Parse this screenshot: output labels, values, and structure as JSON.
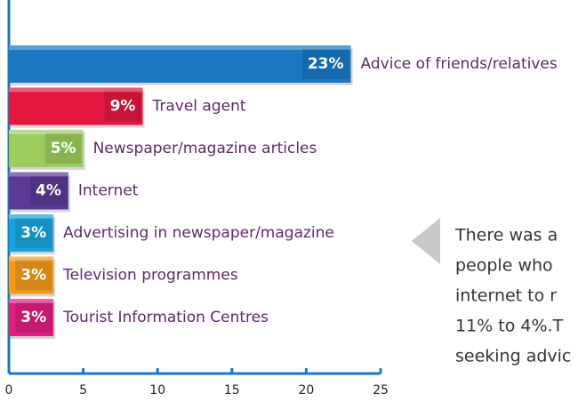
{
  "chart_data": {
    "type": "bar",
    "orientation": "horizontal",
    "categories": [
      "Advice of friends/relatives",
      "Travel agent",
      "Newspaper/magazine articles",
      "Internet",
      "Advertising in newspaper/magazine",
      "Television programmes",
      "Tourist Information Centres"
    ],
    "values": [
      23,
      9,
      5,
      4,
      3,
      3,
      3
    ],
    "value_labels": [
      "23%",
      "9%",
      "5%",
      "4%",
      "3%",
      "3%",
      "3%"
    ],
    "colors": [
      "#1a78c2",
      "#e3173f",
      "#9ccc5c",
      "#5a3a95",
      "#1aa3dc",
      "#f39a1c",
      "#e01f7f"
    ],
    "xlim": [
      0,
      25
    ],
    "xticks": [
      0,
      5,
      10,
      15,
      20,
      25
    ],
    "annotation": [
      "There was a",
      "people who",
      "internet to r",
      "11% to 4%.T",
      "seeking advic"
    ]
  }
}
